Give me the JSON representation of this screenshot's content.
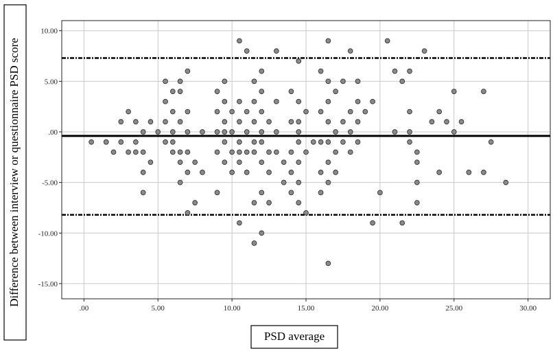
{
  "chart_data": {
    "type": "scatter",
    "title": "",
    "xlabel": "PSD average",
    "ylabel": "Difference between interview or questionnaire  PSD score",
    "xlim": [
      -1.5,
      31.5
    ],
    "ylim": [
      -16.5,
      11.0
    ],
    "x_ticks": [
      0,
      5,
      10,
      15,
      20,
      25,
      30
    ],
    "x_tick_labels": [
      ".00",
      "5.00",
      "10.00",
      "15.00",
      "20.00",
      "25.00",
      "30.00"
    ],
    "y_ticks": [
      10,
      5,
      0,
      -5,
      -10,
      -15
    ],
    "y_tick_labels": [
      "10.00",
      "5.00",
      ".00",
      "-5.00",
      "-10.00",
      "-15.00"
    ],
    "grid": true,
    "mean_line": -0.4,
    "upper_limit": 7.3,
    "lower_limit": -8.2,
    "colors": {
      "point_fill": "#8a8a8a",
      "point_stroke": "#333333",
      "grid": "#c8c8c8",
      "line": "#000000"
    },
    "points": [
      [
        0.5,
        -1
      ],
      [
        1.5,
        -1
      ],
      [
        1.5,
        -1
      ],
      [
        2,
        -2
      ],
      [
        2.5,
        -1
      ],
      [
        2.5,
        1
      ],
      [
        3,
        2
      ],
      [
        3,
        -2
      ],
      [
        3.5,
        1
      ],
      [
        3.5,
        -1
      ],
      [
        3.5,
        -2
      ],
      [
        4,
        0
      ],
      [
        4,
        -2
      ],
      [
        4,
        -4
      ],
      [
        4,
        -6
      ],
      [
        4.5,
        -3
      ],
      [
        4.5,
        1
      ],
      [
        5,
        0
      ],
      [
        5.5,
        5
      ],
      [
        5.5,
        3
      ],
      [
        5.5,
        1
      ],
      [
        5.5,
        -1
      ],
      [
        6,
        4
      ],
      [
        6,
        2
      ],
      [
        6,
        0
      ],
      [
        6,
        -1
      ],
      [
        6,
        -2
      ],
      [
        6.5,
        5
      ],
      [
        6.5,
        4
      ],
      [
        6.5,
        1
      ],
      [
        6.5,
        -2
      ],
      [
        6.5,
        -3
      ],
      [
        6.5,
        -5
      ],
      [
        7,
        6
      ],
      [
        7,
        2
      ],
      [
        7,
        0
      ],
      [
        7,
        -2
      ],
      [
        7,
        -4
      ],
      [
        7,
        -8
      ],
      [
        7.5,
        -3
      ],
      [
        7.5,
        -7
      ],
      [
        8,
        0
      ],
      [
        8,
        -4
      ],
      [
        9,
        4
      ],
      [
        9,
        2
      ],
      [
        9,
        0
      ],
      [
        9,
        -2
      ],
      [
        9,
        -6
      ],
      [
        9.5,
        5
      ],
      [
        9.5,
        3
      ],
      [
        9.5,
        1
      ],
      [
        9.5,
        0
      ],
      [
        9.5,
        -1
      ],
      [
        9.5,
        -3
      ],
      [
        10,
        2
      ],
      [
        10,
        0
      ],
      [
        10,
        -2
      ],
      [
        10,
        -4
      ],
      [
        10.5,
        9
      ],
      [
        10.5,
        3
      ],
      [
        10.5,
        1
      ],
      [
        10.5,
        -1
      ],
      [
        10.5,
        -2
      ],
      [
        10.5,
        -3
      ],
      [
        10.5,
        -9
      ],
      [
        11,
        8
      ],
      [
        11,
        2
      ],
      [
        11,
        0
      ],
      [
        11,
        -2
      ],
      [
        11,
        -4
      ],
      [
        11.5,
        5
      ],
      [
        11.5,
        3
      ],
      [
        11.5,
        1
      ],
      [
        11.5,
        -1
      ],
      [
        11.5,
        -2
      ],
      [
        11.5,
        -7
      ],
      [
        11.5,
        -11
      ],
      [
        12,
        6
      ],
      [
        12,
        4
      ],
      [
        12,
        2
      ],
      [
        12,
        0
      ],
      [
        12,
        -1
      ],
      [
        12,
        -3
      ],
      [
        12,
        -6
      ],
      [
        12,
        -10
      ],
      [
        12.5,
        1
      ],
      [
        12.5,
        -2
      ],
      [
        12.5,
        -4
      ],
      [
        12.5,
        -7
      ],
      [
        13,
        8
      ],
      [
        13,
        3
      ],
      [
        13,
        0
      ],
      [
        13,
        -2
      ],
      [
        13.5,
        -3
      ],
      [
        13.5,
        -5
      ],
      [
        14,
        4
      ],
      [
        14,
        1
      ],
      [
        14,
        -2
      ],
      [
        14,
        -4
      ],
      [
        14,
        -6
      ],
      [
        14.5,
        7
      ],
      [
        14.5,
        3
      ],
      [
        14.5,
        1
      ],
      [
        14.5,
        0
      ],
      [
        14.5,
        -1
      ],
      [
        14.5,
        -3
      ],
      [
        14.5,
        -5
      ],
      [
        14.5,
        -7
      ],
      [
        15,
        2
      ],
      [
        15,
        -2
      ],
      [
        15,
        -8
      ],
      [
        15.5,
        -1
      ],
      [
        16,
        6
      ],
      [
        16,
        2
      ],
      [
        16,
        -1
      ],
      [
        16,
        -4
      ],
      [
        16,
        -6
      ],
      [
        16.5,
        9
      ],
      [
        16.5,
        5
      ],
      [
        16.5,
        3
      ],
      [
        16.5,
        1
      ],
      [
        16.5,
        -1
      ],
      [
        16.5,
        -3
      ],
      [
        16.5,
        -5
      ],
      [
        16.5,
        -13
      ],
      [
        17,
        4
      ],
      [
        17,
        0
      ],
      [
        17,
        -2
      ],
      [
        17,
        -4
      ],
      [
        17.5,
        5
      ],
      [
        17.5,
        1
      ],
      [
        17.5,
        -1
      ],
      [
        18,
        8
      ],
      [
        18,
        2
      ],
      [
        18,
        0
      ],
      [
        18,
        -2
      ],
      [
        18.5,
        5
      ],
      [
        18.5,
        3
      ],
      [
        18.5,
        1
      ],
      [
        18.5,
        -1
      ],
      [
        19,
        2
      ],
      [
        19.5,
        3
      ],
      [
        19.5,
        -9
      ],
      [
        20,
        -6
      ],
      [
        20.5,
        9
      ],
      [
        21,
        6
      ],
      [
        21,
        0
      ],
      [
        21.5,
        5
      ],
      [
        21.5,
        -9
      ],
      [
        22,
        6
      ],
      [
        22,
        2
      ],
      [
        22,
        0
      ],
      [
        22,
        -1
      ],
      [
        22.5,
        -3
      ],
      [
        22.5,
        -5
      ],
      [
        22.5,
        -7
      ],
      [
        22.5,
        -2
      ],
      [
        23,
        8
      ],
      [
        23.5,
        1
      ],
      [
        24,
        2
      ],
      [
        24,
        -4
      ],
      [
        24.5,
        1
      ],
      [
        25,
        4
      ],
      [
        25,
        0
      ],
      [
        25.5,
        1
      ],
      [
        26,
        -4
      ],
      [
        27,
        4
      ],
      [
        27,
        -4
      ],
      [
        27.5,
        -1
      ],
      [
        28.5,
        -5
      ]
    ]
  }
}
